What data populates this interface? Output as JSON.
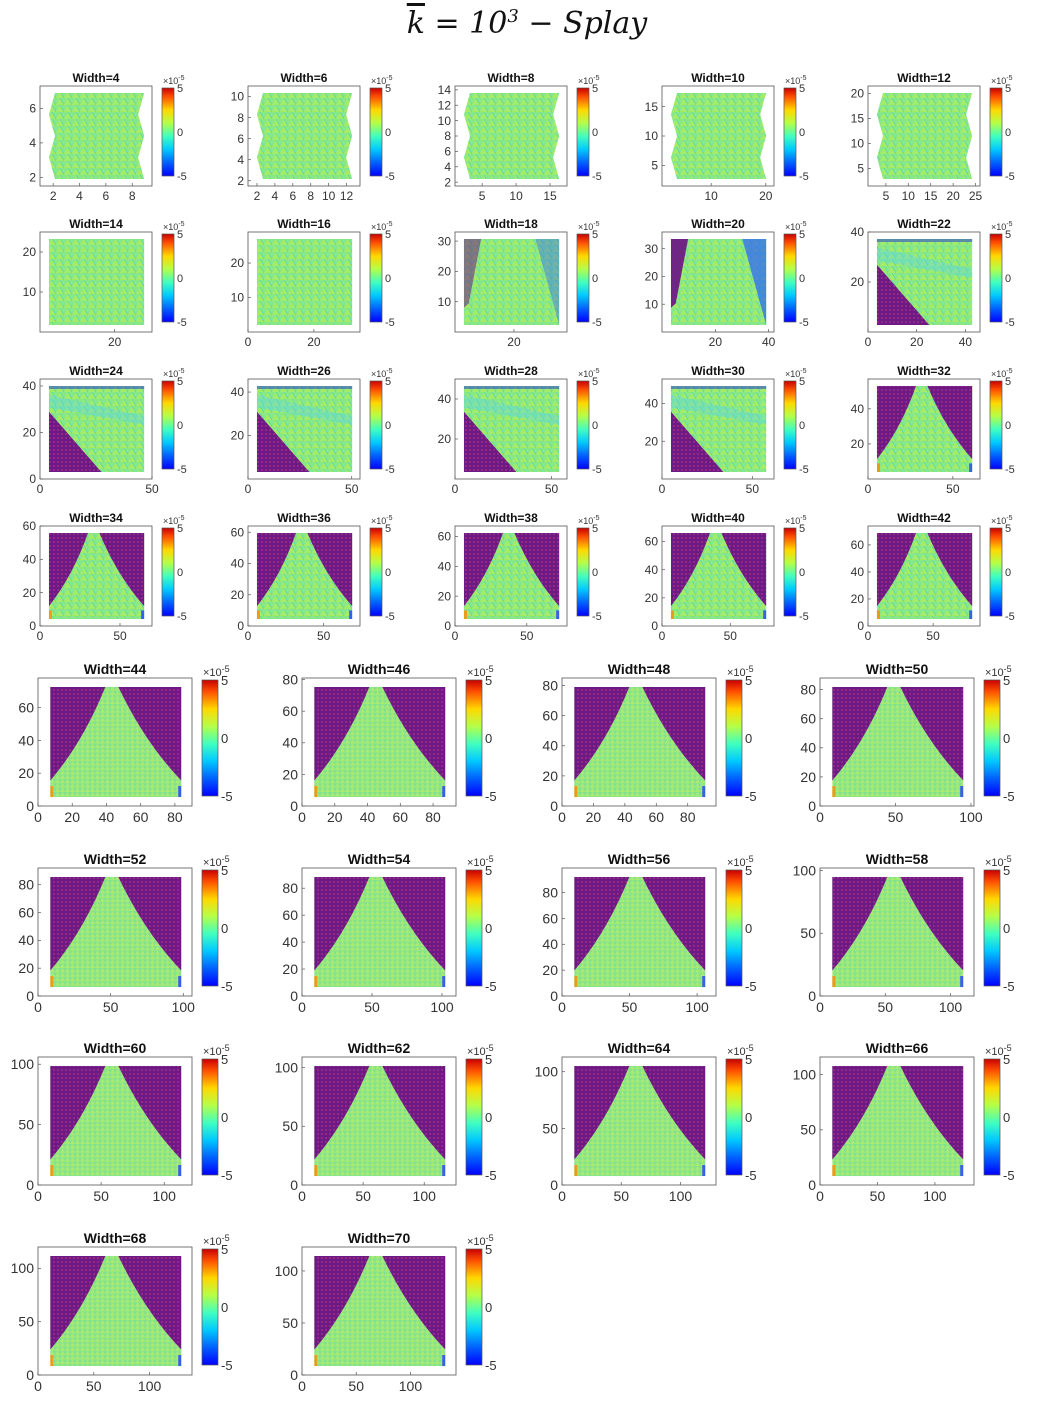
{
  "title": {
    "k_symbol": "k",
    "equals": " = 10",
    "exponent": "3",
    "suffix": " − Splay"
  },
  "chart_data": {
    "type": "heatmap",
    "title": "k̄ = 10^3 − Splay",
    "colormap": "jet",
    "colorbar": {
      "min": -5,
      "max": 5,
      "ticks": [
        "5",
        "0",
        "-5"
      ],
      "multiplier": "×10",
      "multiplier_exp": "-5"
    },
    "highlight_color": "#7a1f86",
    "background_color": "#7ee08a",
    "panels": [
      {
        "title": "Width=4",
        "xticks": [
          "2",
          "4",
          "6",
          "8"
        ],
        "yticks": [
          "2",
          "4",
          "6"
        ],
        "xlim": [
          1,
          9.5
        ],
        "ylim": [
          1.5,
          7.3
        ]
      },
      {
        "title": "Width=6",
        "xticks": [
          "2",
          "4",
          "6",
          "8",
          "10",
          "12"
        ],
        "yticks": [
          "2",
          "4",
          "6",
          "8",
          "10"
        ],
        "xlim": [
          1,
          13.5
        ],
        "ylim": [
          1.5,
          11
        ]
      },
      {
        "title": "Width=8",
        "xticks": [
          "5",
          "10",
          "15"
        ],
        "yticks": [
          "2",
          "4",
          "6",
          "8",
          "10",
          "12",
          "14"
        ],
        "xlim": [
          1,
          17.5
        ],
        "ylim": [
          1.5,
          14.5
        ]
      },
      {
        "title": "Width=10",
        "xticks": [
          "10",
          "20"
        ],
        "yticks": [
          "5",
          "10",
          "15"
        ],
        "xlim": [
          1,
          21.5
        ],
        "ylim": [
          1.5,
          18.5
        ]
      },
      {
        "title": "Width=12",
        "xticks": [
          "5",
          "10",
          "15",
          "20",
          "25"
        ],
        "yticks": [
          "5",
          "10",
          "15",
          "20"
        ],
        "xlim": [
          1,
          26
        ],
        "ylim": [
          1.5,
          21.5
        ]
      },
      {
        "title": "Width=14",
        "xticks": [
          "20"
        ],
        "yticks": [
          "10",
          "20"
        ],
        "xlim": [
          0,
          30
        ],
        "ylim": [
          0,
          25
        ]
      },
      {
        "title": "Width=16",
        "xticks": [
          "0",
          "20"
        ],
        "yticks": [
          "10",
          "20"
        ],
        "xlim": [
          0,
          34
        ],
        "ylim": [
          0,
          29
        ]
      },
      {
        "title": "Width=18",
        "xticks": [
          "20"
        ],
        "yticks": [
          "10",
          "20",
          "30"
        ],
        "xlim": [
          0,
          38
        ],
        "ylim": [
          0,
          33
        ]
      },
      {
        "title": "Width=20",
        "xticks": [
          "20",
          "40"
        ],
        "yticks": [
          "10",
          "20",
          "30"
        ],
        "xlim": [
          0,
          42
        ],
        "ylim": [
          0,
          36
        ]
      },
      {
        "title": "Width=22",
        "xticks": [
          "0",
          "20",
          "40"
        ],
        "yticks": [
          "20",
          "40"
        ],
        "xlim": [
          0,
          46
        ],
        "ylim": [
          0,
          40
        ]
      },
      {
        "title": "Width=24",
        "xticks": [
          "0",
          "50"
        ],
        "yticks": [
          "0",
          "20",
          "40"
        ],
        "xlim": [
          0,
          50
        ],
        "ylim": [
          0,
          43
        ]
      },
      {
        "title": "Width=26",
        "xticks": [
          "0",
          "50"
        ],
        "yticks": [
          "20",
          "40"
        ],
        "xlim": [
          0,
          54
        ],
        "ylim": [
          0,
          46
        ]
      },
      {
        "title": "Width=28",
        "xticks": [
          "0",
          "50"
        ],
        "yticks": [
          "20",
          "40"
        ],
        "xlim": [
          0,
          58
        ],
        "ylim": [
          0,
          50
        ]
      },
      {
        "title": "Width=30",
        "xticks": [
          "0",
          "50"
        ],
        "yticks": [
          "20",
          "40"
        ],
        "xlim": [
          0,
          62
        ],
        "ylim": [
          0,
          53
        ]
      },
      {
        "title": "Width=32",
        "xticks": [
          "0",
          "50"
        ],
        "yticks": [
          "20",
          "40"
        ],
        "xlim": [
          0,
          66
        ],
        "ylim": [
          0,
          57
        ]
      },
      {
        "title": "Width=34",
        "xticks": [
          "0",
          "50"
        ],
        "yticks": [
          "0",
          "20",
          "40",
          "60"
        ],
        "xlim": [
          0,
          70
        ],
        "ylim": [
          0,
          60
        ]
      },
      {
        "title": "Width=36",
        "xticks": [
          "0",
          "50"
        ],
        "yticks": [
          "0",
          "20",
          "40",
          "60"
        ],
        "xlim": [
          0,
          74
        ],
        "ylim": [
          0,
          64
        ]
      },
      {
        "title": "Width=38",
        "xticks": [
          "0",
          "50"
        ],
        "yticks": [
          "0",
          "20",
          "40",
          "60"
        ],
        "xlim": [
          0,
          78
        ],
        "ylim": [
          0,
          67
        ]
      },
      {
        "title": "Width=40",
        "xticks": [
          "0",
          "50"
        ],
        "yticks": [
          "0",
          "20",
          "40",
          "60"
        ],
        "xlim": [
          0,
          82
        ],
        "ylim": [
          0,
          71
        ]
      },
      {
        "title": "Width=42",
        "xticks": [
          "0",
          "50"
        ],
        "yticks": [
          "0",
          "20",
          "40",
          "60"
        ],
        "xlim": [
          0,
          86
        ],
        "ylim": [
          0,
          74
        ]
      },
      {
        "title": "Width=44",
        "xticks": [
          "0",
          "20",
          "40",
          "60",
          "80"
        ],
        "yticks": [
          "0",
          "20",
          "40",
          "60"
        ],
        "xlim": [
          0,
          90
        ],
        "ylim": [
          0,
          78
        ]
      },
      {
        "title": "Width=46",
        "xticks": [
          "0",
          "20",
          "40",
          "60",
          "80"
        ],
        "yticks": [
          "0",
          "20",
          "40",
          "60",
          "80"
        ],
        "xlim": [
          0,
          94
        ],
        "ylim": [
          0,
          81
        ]
      },
      {
        "title": "Width=48",
        "xticks": [
          "0",
          "20",
          "40",
          "60",
          "80"
        ],
        "yticks": [
          "0",
          "20",
          "40",
          "60",
          "80"
        ],
        "xlim": [
          0,
          98
        ],
        "ylim": [
          0,
          85
        ]
      },
      {
        "title": "Width=50",
        "xticks": [
          "0",
          "50",
          "100"
        ],
        "yticks": [
          "0",
          "20",
          "40",
          "60",
          "80"
        ],
        "xlim": [
          0,
          102
        ],
        "ylim": [
          0,
          88
        ]
      },
      {
        "title": "Width=52",
        "xticks": [
          "0",
          "50",
          "100"
        ],
        "yticks": [
          "0",
          "20",
          "40",
          "60",
          "80"
        ],
        "xlim": [
          0,
          106
        ],
        "ylim": [
          0,
          92
        ]
      },
      {
        "title": "Width=54",
        "xticks": [
          "0",
          "50",
          "100"
        ],
        "yticks": [
          "0",
          "20",
          "40",
          "60",
          "80"
        ],
        "xlim": [
          0,
          110
        ],
        "ylim": [
          0,
          95
        ]
      },
      {
        "title": "Width=56",
        "xticks": [
          "0",
          "50",
          "100"
        ],
        "yticks": [
          "0",
          "20",
          "40",
          "60",
          "80"
        ],
        "xlim": [
          0,
          114
        ],
        "ylim": [
          0,
          99
        ]
      },
      {
        "title": "Width=58",
        "xticks": [
          "0",
          "50",
          "100"
        ],
        "yticks": [
          "0",
          "50",
          "100"
        ],
        "xlim": [
          0,
          118
        ],
        "ylim": [
          0,
          102
        ]
      },
      {
        "title": "Width=60",
        "xticks": [
          "0",
          "50",
          "100"
        ],
        "yticks": [
          "0",
          "50",
          "100"
        ],
        "xlim": [
          0,
          122
        ],
        "ylim": [
          0,
          106
        ]
      },
      {
        "title": "Width=62",
        "xticks": [
          "0",
          "50",
          "100"
        ],
        "yticks": [
          "0",
          "50",
          "100"
        ],
        "xlim": [
          0,
          126
        ],
        "ylim": [
          0,
          109
        ]
      },
      {
        "title": "Width=64",
        "xticks": [
          "0",
          "50",
          "100"
        ],
        "yticks": [
          "0",
          "50",
          "100"
        ],
        "xlim": [
          0,
          130
        ],
        "ylim": [
          0,
          113
        ]
      },
      {
        "title": "Width=66",
        "xticks": [
          "0",
          "50",
          "100"
        ],
        "yticks": [
          "0",
          "50",
          "100"
        ],
        "xlim": [
          0,
          134
        ],
        "ylim": [
          0,
          116
        ]
      },
      {
        "title": "Width=68",
        "xticks": [
          "0",
          "50",
          "100"
        ],
        "yticks": [
          "0",
          "50",
          "100"
        ],
        "xlim": [
          0,
          138
        ],
        "ylim": [
          0,
          120
        ]
      },
      {
        "title": "Width=70",
        "xticks": [
          "0",
          "50",
          "100"
        ],
        "yticks": [
          "0",
          "50",
          "100"
        ],
        "xlim": [
          0,
          142
        ],
        "ylim": [
          0,
          123
        ]
      }
    ]
  }
}
